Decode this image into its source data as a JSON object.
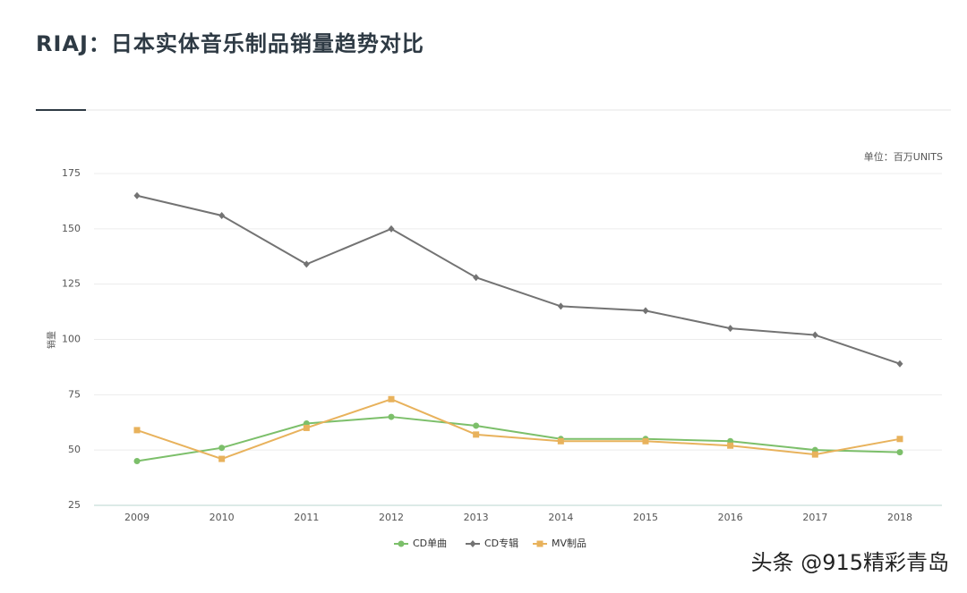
{
  "chart_data": {
    "type": "line",
    "title": "RIAJ：日本实体音乐制品销量趋势对比",
    "unit_label": "单位：百万UNITS",
    "y_label": "销量",
    "watermark": "头条 @915精彩青岛",
    "categories": [
      "2009",
      "2010",
      "2011",
      "2012",
      "2013",
      "2014",
      "2015",
      "2016",
      "2017",
      "2018"
    ],
    "series": [
      {
        "name": "CD单曲",
        "color": "#7cbf6a",
        "marker": "circle",
        "values": [
          45,
          51,
          62,
          65,
          61,
          55,
          55,
          54,
          50,
          49
        ]
      },
      {
        "name": "CD专辑",
        "color": "#737373",
        "marker": "diamond",
        "values": [
          165,
          156,
          134,
          150,
          128,
          115,
          113,
          105,
          102,
          89
        ]
      },
      {
        "name": "MV制品",
        "color": "#e8b25c",
        "marker": "square",
        "values": [
          59,
          46,
          60,
          73,
          57,
          54,
          54,
          52,
          48,
          55
        ]
      }
    ],
    "ylim": [
      25,
      175
    ],
    "yticks": [
      25,
      50,
      75,
      100,
      125,
      150,
      175
    ],
    "grid": true
  }
}
